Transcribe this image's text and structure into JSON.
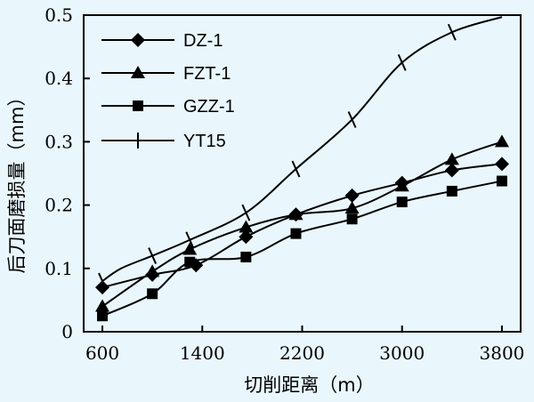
{
  "chart_data": {
    "type": "line",
    "xlabel": "切削距离（m）",
    "ylabel": "后刀面磨损量（mm）",
    "xlim": [
      450,
      3950
    ],
    "ylim": [
      0,
      0.5
    ],
    "x_ticks": [
      600,
      1400,
      2200,
      3000,
      3800
    ],
    "x_tick_labels": [
      "600",
      "1400",
      "2200",
      "3000",
      "3800"
    ],
    "y_ticks": [
      0,
      0.1,
      0.2,
      0.3,
      0.4,
      0.5
    ],
    "y_tick_labels": [
      "0",
      "0.1",
      "0.2",
      "0.3",
      "0.4",
      "0.5"
    ],
    "grid": false,
    "legend_position": "top-left",
    "series": [
      {
        "name": "DZ-1",
        "marker": "diamond",
        "x": [
          600,
          1000,
          1350,
          1750,
          2150,
          2600,
          3000,
          3400,
          3800
        ],
        "y": [
          0.07,
          0.09,
          0.105,
          0.15,
          0.185,
          0.215,
          0.235,
          0.255,
          0.265
        ],
        "marker_x": [
          600,
          1000,
          1350,
          1750,
          2150,
          2600,
          3000,
          3400,
          3800
        ],
        "marker_y": [
          0.07,
          0.09,
          0.105,
          0.15,
          0.185,
          0.215,
          0.235,
          0.255,
          0.265
        ]
      },
      {
        "name": "FZT-1",
        "marker": "triangle",
        "x": [
          600,
          1000,
          1300,
          1750,
          2150,
          2600,
          3000,
          3400,
          3800
        ],
        "y": [
          0.04,
          0.095,
          0.13,
          0.165,
          0.185,
          0.195,
          0.23,
          0.272,
          0.3
        ],
        "marker_x": [
          600,
          1000,
          1300,
          1750,
          2150,
          2600,
          3000,
          3400,
          3800
        ],
        "marker_y": [
          0.04,
          0.095,
          0.13,
          0.165,
          0.185,
          0.195,
          0.23,
          0.272,
          0.3
        ]
      },
      {
        "name": "GZZ-1",
        "marker": "square",
        "x": [
          600,
          1000,
          1300,
          1750,
          2150,
          2600,
          3000,
          3400,
          3800
        ],
        "y": [
          0.025,
          0.06,
          0.11,
          0.118,
          0.155,
          0.178,
          0.205,
          0.222,
          0.238
        ],
        "marker_x": [
          600,
          1000,
          1300,
          1750,
          2150,
          2600,
          3000,
          3400,
          3800
        ],
        "marker_y": [
          0.025,
          0.06,
          0.11,
          0.118,
          0.155,
          0.178,
          0.205,
          0.222,
          0.238
        ]
      },
      {
        "name": "YT15",
        "marker": "plus",
        "x": [
          600,
          750,
          1000,
          1300,
          1750,
          2150,
          2600,
          3000,
          3400,
          3800
        ],
        "y": [
          0.08,
          0.1,
          0.12,
          0.145,
          0.188,
          0.257,
          0.335,
          0.425,
          0.473,
          0.497
        ],
        "marker_x": [
          600,
          1000,
          1300,
          1750,
          2150,
          2600,
          3000,
          3400
        ],
        "marker_y": [
          0.08,
          0.12,
          0.145,
          0.188,
          0.257,
          0.335,
          0.425,
          0.473
        ]
      }
    ]
  }
}
